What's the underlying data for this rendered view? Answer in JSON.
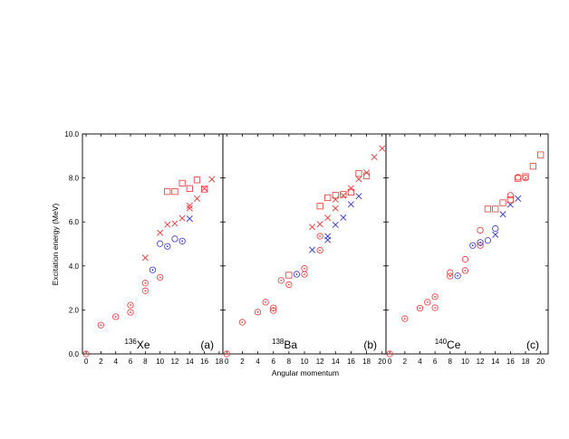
{
  "colors": {
    "red": "#ee3333",
    "blue": "#3333cc",
    "axis": "#000000"
  },
  "markers": {
    "square": "open-square",
    "circle": "open-circle",
    "circle_dot": "circle-with-dot",
    "cross": "x-cross"
  },
  "chart_data": {
    "type": "scatter",
    "ylabel": "Excitation energy (MeV)",
    "xlabel": "Angular momentum",
    "ylim": [
      0,
      10
    ],
    "yticks": [
      "0.0",
      "2.0",
      "4.0",
      "6.0",
      "8.0",
      "10.0"
    ],
    "grid": false,
    "panels": [
      {
        "mass": "136",
        "element": "Xe",
        "tag": "(a)",
        "xlim": [
          -0.5,
          18.5
        ],
        "xticks": [
          "0",
          "2",
          "4",
          "6",
          "8",
          "10",
          "12",
          "14",
          "16",
          "18"
        ],
        "points": [
          {
            "x": 0,
            "y": 0.0,
            "m": "circle_dot",
            "c": "red"
          },
          {
            "x": 2,
            "y": 1.31,
            "m": "circle_dot",
            "c": "red"
          },
          {
            "x": 4,
            "y": 1.69,
            "m": "circle_dot",
            "c": "red"
          },
          {
            "x": 6,
            "y": 1.89,
            "m": "circle_dot",
            "c": "red"
          },
          {
            "x": 6,
            "y": 2.22,
            "m": "circle_dot",
            "c": "red"
          },
          {
            "x": 8,
            "y": 2.87,
            "m": "circle_dot",
            "c": "red"
          },
          {
            "x": 8,
            "y": 3.22,
            "m": "circle_dot",
            "c": "red"
          },
          {
            "x": 10,
            "y": 3.48,
            "m": "circle_dot",
            "c": "red"
          },
          {
            "x": 8,
            "y": 4.37,
            "m": "cross",
            "c": "red"
          },
          {
            "x": 9,
            "y": 3.82,
            "m": "circle_dot",
            "c": "blue"
          },
          {
            "x": 10,
            "y": 5.01,
            "m": "circle",
            "c": "blue"
          },
          {
            "x": 11,
            "y": 4.89,
            "m": "circle_dot",
            "c": "blue"
          },
          {
            "x": 12,
            "y": 5.23,
            "m": "circle",
            "c": "blue"
          },
          {
            "x": 13,
            "y": 5.13,
            "m": "circle_dot",
            "c": "blue"
          },
          {
            "x": 14,
            "y": 6.15,
            "m": "cross",
            "c": "blue"
          },
          {
            "x": 10,
            "y": 5.51,
            "m": "cross",
            "c": "red"
          },
          {
            "x": 11,
            "y": 5.88,
            "m": "cross",
            "c": "red"
          },
          {
            "x": 12,
            "y": 5.93,
            "m": "cross",
            "c": "red"
          },
          {
            "x": 13,
            "y": 6.17,
            "m": "cross",
            "c": "red"
          },
          {
            "x": 14,
            "y": 6.62,
            "m": "cross",
            "c": "red"
          },
          {
            "x": 14,
            "y": 6.74,
            "m": "cross",
            "c": "red"
          },
          {
            "x": 15,
            "y": 7.06,
            "m": "cross",
            "c": "red"
          },
          {
            "x": 16,
            "y": 7.52,
            "m": "cross",
            "c": "red"
          },
          {
            "x": 17,
            "y": 7.94,
            "m": "cross",
            "c": "red"
          },
          {
            "x": 11,
            "y": 7.38,
            "m": "square",
            "c": "red"
          },
          {
            "x": 12,
            "y": 7.38,
            "m": "square",
            "c": "red"
          },
          {
            "x": 13,
            "y": 7.76,
            "m": "square",
            "c": "red"
          },
          {
            "x": 14,
            "y": 7.52,
            "m": "square",
            "c": "red"
          },
          {
            "x": 15,
            "y": 7.91,
            "m": "square",
            "c": "red"
          },
          {
            "x": 16,
            "y": 7.49,
            "m": "square",
            "c": "red"
          }
        ]
      },
      {
        "mass": "138",
        "element": "Ba",
        "tag": "(b)",
        "xlim": [
          -0.5,
          20.5
        ],
        "xticks": [
          "0",
          "2",
          "4",
          "6",
          "8",
          "10",
          "12",
          "14",
          "16",
          "18",
          "20"
        ],
        "points": [
          {
            "x": 0,
            "y": 0.0,
            "m": "circle_dot",
            "c": "red"
          },
          {
            "x": 2,
            "y": 1.44,
            "m": "circle_dot",
            "c": "red"
          },
          {
            "x": 4,
            "y": 1.9,
            "m": "circle_dot",
            "c": "red"
          },
          {
            "x": 5,
            "y": 2.35,
            "m": "circle_dot",
            "c": "red"
          },
          {
            "x": 6,
            "y": 2.09,
            "m": "circle_dot",
            "c": "red"
          },
          {
            "x": 6,
            "y": 1.97,
            "m": "circle_dot",
            "c": "red"
          },
          {
            "x": 7,
            "y": 3.34,
            "m": "circle_dot",
            "c": "red"
          },
          {
            "x": 8,
            "y": 3.15,
            "m": "circle_dot",
            "c": "red"
          },
          {
            "x": 8,
            "y": 3.58,
            "m": "square",
            "c": "red"
          },
          {
            "x": 9,
            "y": 3.62,
            "m": "circle_dot",
            "c": "blue"
          },
          {
            "x": 10,
            "y": 3.62,
            "m": "circle_dot",
            "c": "red"
          },
          {
            "x": 10,
            "y": 3.88,
            "m": "circle_dot",
            "c": "red"
          },
          {
            "x": 11,
            "y": 4.73,
            "m": "cross",
            "c": "blue"
          },
          {
            "x": 12,
            "y": 4.71,
            "m": "circle_dot",
            "c": "red"
          },
          {
            "x": 12,
            "y": 5.35,
            "m": "circle_dot",
            "c": "red"
          },
          {
            "x": 13,
            "y": 5.18,
            "m": "cross",
            "c": "blue"
          },
          {
            "x": 13,
            "y": 5.35,
            "m": "cross",
            "c": "blue"
          },
          {
            "x": 14,
            "y": 5.87,
            "m": "cross",
            "c": "blue"
          },
          {
            "x": 15,
            "y": 6.2,
            "m": "cross",
            "c": "blue"
          },
          {
            "x": 16,
            "y": 6.8,
            "m": "cross",
            "c": "blue"
          },
          {
            "x": 17,
            "y": 7.17,
            "m": "cross",
            "c": "blue"
          },
          {
            "x": 11,
            "y": 5.77,
            "m": "cross",
            "c": "red"
          },
          {
            "x": 12,
            "y": 5.9,
            "m": "cross",
            "c": "red"
          },
          {
            "x": 13,
            "y": 6.19,
            "m": "cross",
            "c": "red"
          },
          {
            "x": 14,
            "y": 6.62,
            "m": "cross",
            "c": "red"
          },
          {
            "x": 14,
            "y": 7.02,
            "m": "cross",
            "c": "red"
          },
          {
            "x": 15,
            "y": 7.2,
            "m": "cross",
            "c": "red"
          },
          {
            "x": 16,
            "y": 7.53,
            "m": "cross",
            "c": "red"
          },
          {
            "x": 17,
            "y": 7.95,
            "m": "cross",
            "c": "red"
          },
          {
            "x": 18,
            "y": 8.24,
            "m": "cross",
            "c": "red"
          },
          {
            "x": 19,
            "y": 8.95,
            "m": "cross",
            "c": "red"
          },
          {
            "x": 20,
            "y": 9.34,
            "m": "cross",
            "c": "red"
          },
          {
            "x": 12,
            "y": 6.72,
            "m": "square",
            "c": "red"
          },
          {
            "x": 13,
            "y": 7.1,
            "m": "square",
            "c": "red"
          },
          {
            "x": 14,
            "y": 7.21,
            "m": "square",
            "c": "red"
          },
          {
            "x": 15,
            "y": 7.25,
            "m": "square",
            "c": "red"
          },
          {
            "x": 16,
            "y": 7.35,
            "m": "square",
            "c": "red"
          },
          {
            "x": 17,
            "y": 8.2,
            "m": "square",
            "c": "red"
          },
          {
            "x": 18,
            "y": 8.1,
            "m": "square",
            "c": "red"
          }
        ]
      },
      {
        "mass": "140",
        "element": "Ce",
        "tag": "(c)",
        "xlim": [
          -0.5,
          21
        ],
        "xticks": [
          "0",
          "2",
          "4",
          "6",
          "8",
          "10",
          "12",
          "14",
          "16",
          "18",
          "20"
        ],
        "points": [
          {
            "x": 0,
            "y": 0.0,
            "m": "circle_dot",
            "c": "red"
          },
          {
            "x": 2,
            "y": 1.6,
            "m": "circle_dot",
            "c": "red"
          },
          {
            "x": 4,
            "y": 2.08,
            "m": "circle_dot",
            "c": "red"
          },
          {
            "x": 5,
            "y": 2.35,
            "m": "circle_dot",
            "c": "red"
          },
          {
            "x": 6,
            "y": 2.1,
            "m": "circle_dot",
            "c": "red"
          },
          {
            "x": 6,
            "y": 2.6,
            "m": "circle_dot",
            "c": "red"
          },
          {
            "x": 8,
            "y": 3.54,
            "m": "circle_dot",
            "c": "red"
          },
          {
            "x": 8,
            "y": 3.7,
            "m": "circle",
            "c": "red"
          },
          {
            "x": 9,
            "y": 3.55,
            "m": "circle_dot",
            "c": "blue"
          },
          {
            "x": 10,
            "y": 3.79,
            "m": "circle_dot",
            "c": "red"
          },
          {
            "x": 10,
            "y": 4.3,
            "m": "circle",
            "c": "red"
          },
          {
            "x": 11,
            "y": 4.93,
            "m": "circle_dot",
            "c": "blue"
          },
          {
            "x": 12,
            "y": 4.93,
            "m": "circle_dot",
            "c": "red"
          },
          {
            "x": 12,
            "y": 5.07,
            "m": "circle_dot",
            "c": "blue"
          },
          {
            "x": 12,
            "y": 5.62,
            "m": "circle",
            "c": "red"
          },
          {
            "x": 13,
            "y": 5.16,
            "m": "circle",
            "c": "blue"
          },
          {
            "x": 14,
            "y": 5.42,
            "m": "cross",
            "c": "blue"
          },
          {
            "x": 14,
            "y": 5.7,
            "m": "circle",
            "c": "blue"
          },
          {
            "x": 15,
            "y": 6.35,
            "m": "cross",
            "c": "blue"
          },
          {
            "x": 16,
            "y": 6.79,
            "m": "cross",
            "c": "blue"
          },
          {
            "x": 17,
            "y": 7.06,
            "m": "cross",
            "c": "blue"
          },
          {
            "x": 13,
            "y": 6.59,
            "m": "square",
            "c": "red"
          },
          {
            "x": 14,
            "y": 6.59,
            "m": "square",
            "c": "red"
          },
          {
            "x": 15,
            "y": 6.87,
            "m": "square",
            "c": "red"
          },
          {
            "x": 16,
            "y": 7.01,
            "m": "square",
            "c": "red"
          },
          {
            "x": 17,
            "y": 7.98,
            "m": "square",
            "c": "red"
          },
          {
            "x": 18,
            "y": 8.06,
            "m": "square",
            "c": "red"
          },
          {
            "x": 19,
            "y": 8.53,
            "m": "square",
            "c": "red"
          },
          {
            "x": 20,
            "y": 9.05,
            "m": "square",
            "c": "red"
          },
          {
            "x": 16,
            "y": 7.21,
            "m": "circle",
            "c": "red"
          },
          {
            "x": 17,
            "y": 8.03,
            "m": "circle",
            "c": "red"
          },
          {
            "x": 18,
            "y": 8.0,
            "m": "circle_dot",
            "c": "red"
          }
        ]
      }
    ]
  }
}
